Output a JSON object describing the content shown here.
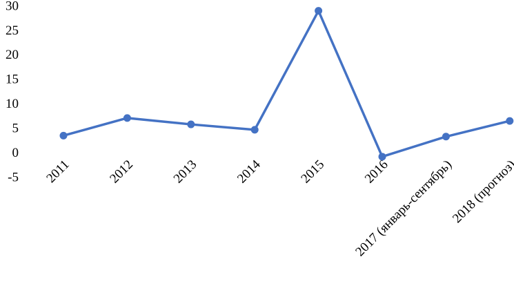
{
  "chart_data": {
    "type": "line",
    "categories": [
      "2011",
      "2012",
      "2013",
      "2014",
      "2015",
      "2016",
      "2017 (январь-сентябрь)",
      "2018 (прогноз)"
    ],
    "series": [
      {
        "name": null,
        "color": "#4472c4",
        "values": [
          3.7,
          7.3,
          6.0,
          4.9,
          29.2,
          -0.6,
          3.5,
          6.7
        ]
      }
    ],
    "ylim": [
      -5,
      30
    ],
    "yticks": [
      -5,
      0,
      5,
      10,
      15,
      20,
      25,
      30
    ],
    "grid": false
  }
}
